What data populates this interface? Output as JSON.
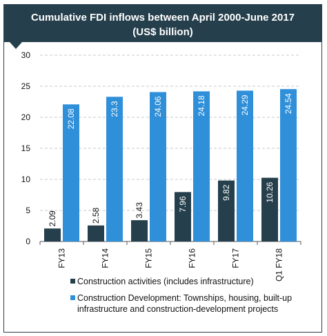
{
  "chart_data": {
    "type": "bar",
    "title": "Cumulative FDI inflows between April 2000-June 2017",
    "subtitle": "(US$ billion)",
    "categories": [
      "FY13",
      "FY14",
      "FY15",
      "FY16",
      "FY17",
      "Q1 FY18"
    ],
    "series": [
      {
        "name": "Construction activities (includes infrastructure)",
        "color": "#263f4c",
        "values": [
          2.09,
          2.58,
          3.43,
          7.96,
          9.82,
          10.26
        ]
      },
      {
        "name": "Construction Development: Townships, housing, built-up infrastructure and construction-development projects",
        "color": "#2f8fd8",
        "values": [
          22.08,
          23.3,
          24.06,
          24.18,
          24.29,
          24.54
        ]
      }
    ],
    "value_labels": [
      [
        "2.09",
        "2.58",
        "3.43",
        "7.96",
        "9.82",
        "10.26"
      ],
      [
        "22.08",
        "23.3",
        "24.06",
        "24.18",
        "24.29",
        "24.54"
      ]
    ],
    "ylim": [
      0,
      30
    ],
    "yticks": [
      "0",
      "5",
      "10",
      "15",
      "20",
      "25",
      "30"
    ],
    "grid": true,
    "legend_position": "bottom"
  }
}
